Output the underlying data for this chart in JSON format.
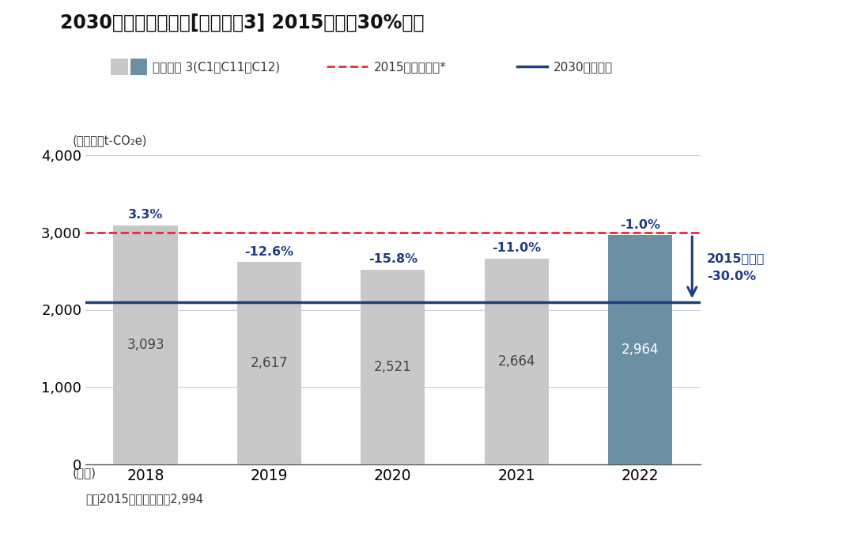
{
  "title": "2030年度中期目標　[スコープ3] 2015年度比30%削減",
  "years": [
    2018,
    2019,
    2020,
    2021,
    2022
  ],
  "values": [
    3093,
    2617,
    2521,
    2664,
    2964
  ],
  "bar_colors": [
    "#c8c8c8",
    "#c8c8c8",
    "#c8c8c8",
    "#c8c8c8",
    "#6b8fa3"
  ],
  "pct_labels": [
    "3.3%",
    "-12.6%",
    "-15.8%",
    "-11.0%",
    "-1.0%"
  ],
  "pct_color": "#1f3b82",
  "value_labels": [
    "3,093",
    "2,617",
    "2,521",
    "2,664",
    "2,964"
  ],
  "value_label_colors": [
    "#444444",
    "#444444",
    "#444444",
    "#444444",
    "#ffffff"
  ],
  "ref_line_value": 2994,
  "ref_line_color": "#e03030",
  "target_line_value": 2096,
  "target_line_color": "#1f3b82",
  "ylim": [
    0,
    4000
  ],
  "yticks": [
    0,
    1000,
    2000,
    3000,
    4000
  ],
  "unit_label": "(単位：千t-CO₂e)",
  "year_label": "(年度)",
  "footnote": "＊：2015年度排出量　2,994",
  "legend_bar_light": "#c8c8c8",
  "legend_bar_dark": "#6b8fa3",
  "legend_bar_text": "スコープ 3(C1・C11・C12)",
  "legend_ref_text": "2015年度排出量*",
  "legend_target_text": "2030年度目標",
  "arrow_label1": "2015年度比",
  "arrow_label2": "-30.0%",
  "bg_color": "#ffffff"
}
